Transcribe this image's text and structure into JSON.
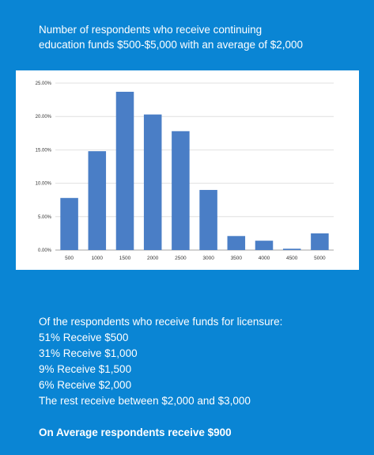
{
  "header": {
    "title_line1": "Number of respondents who receive continuing",
    "title_line2": "education funds  $500-$5,000 with an average of $2,000"
  },
  "chart_data": {
    "type": "bar",
    "categories": [
      "500",
      "1000",
      "1500",
      "2000",
      "2500",
      "3000",
      "3500",
      "4000",
      "4500",
      "5000"
    ],
    "values": [
      7.8,
      14.8,
      23.7,
      20.3,
      17.8,
      9.0,
      2.1,
      1.4,
      0.2,
      2.5
    ],
    "title": "",
    "xlabel": "",
    "ylabel": "",
    "ylim": [
      0,
      25
    ],
    "yticks": [
      "0.00%",
      "5.00%",
      "10.00%",
      "15.00%",
      "20.00%",
      "25.00%"
    ],
    "bar_color": "#4a7ec6",
    "grid": true
  },
  "licensure": {
    "intro": "Of the respondents who receive funds for licensure:",
    "items": [
      "51% Receive $500",
      "31% Receive $1,000",
      "9% Receive $1,500",
      "6% Receive $2,000",
      "The rest receive between $2,000 and $3,000"
    ],
    "summary": "On Average respondents receive $900"
  },
  "colors": {
    "background": "#0a85d4",
    "card": "#ffffff",
    "text": "#ffffff"
  }
}
